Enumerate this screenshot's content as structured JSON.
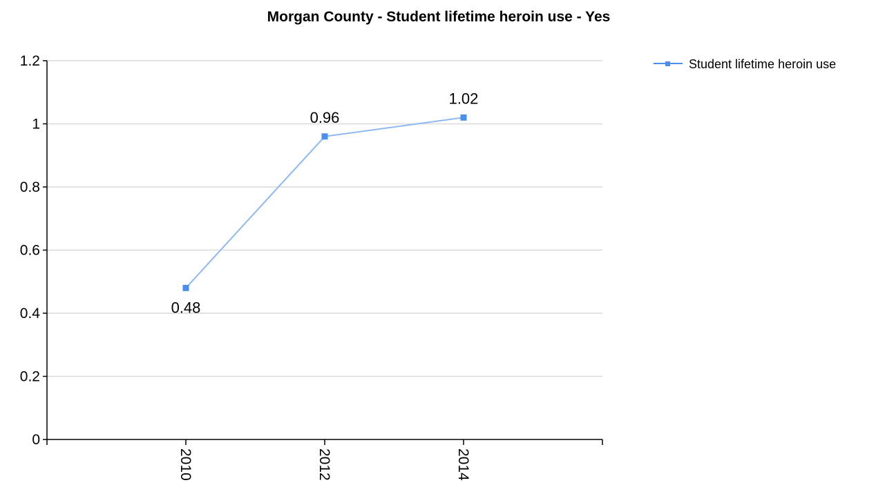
{
  "chart_data": {
    "type": "line",
    "title": "Morgan County - Student lifetime heroin use - Yes",
    "xlabel": "",
    "ylabel": "",
    "categories": [
      "2010",
      "2012",
      "2014"
    ],
    "series": [
      {
        "name": "Student lifetime heroin use",
        "values": [
          0.48,
          0.96,
          1.02
        ],
        "data_labels": [
          "0.48",
          "0.96",
          "1.02"
        ],
        "color": "#4a8ff0"
      }
    ],
    "ylim": [
      0,
      1.2
    ],
    "yticks": [
      "0",
      "0.2",
      "0.4",
      "0.6",
      "0.8",
      "1",
      "1.2"
    ],
    "grid": true,
    "legend_position": "top-right"
  }
}
